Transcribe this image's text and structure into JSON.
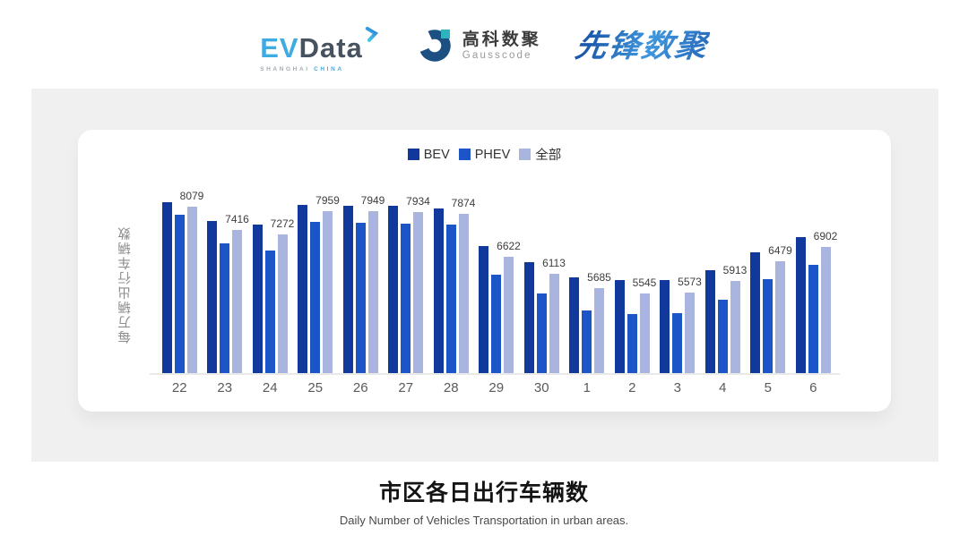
{
  "header": {
    "evdata": {
      "ev": "EV",
      "data": "Data",
      "sub_left": "SHANGHAI",
      "sub_right": "CHINA"
    },
    "gausscode": {
      "cn": "高科数聚",
      "en": "Gausscode"
    },
    "xianfeng": {
      "text": "先锋数聚"
    }
  },
  "chart_data": {
    "type": "bar",
    "title": "市区各日出行车辆数",
    "subtitle": "Daily Number of Vehicles Transportation in urban areas.",
    "ylabel": "每万辆出行车辆数",
    "xlabel": "",
    "categories": [
      "22",
      "23",
      "24",
      "25",
      "26",
      "27",
      "28",
      "29",
      "30",
      "1",
      "2",
      "3",
      "4",
      "5",
      "6"
    ],
    "series": [
      {
        "key": "bev",
        "name": "BEV",
        "color": "#10399b",
        "value_labels_visible": false,
        "values": [
          8220,
          7670,
          7560,
          8140,
          8110,
          8110,
          8030,
          6920,
          6460,
          6000,
          5920,
          5920,
          6230,
          6740,
          7190
        ]
      },
      {
        "key": "phev",
        "name": "PHEV",
        "color": "#1c55c7",
        "value_labels_visible": false,
        "values": [
          7850,
          7010,
          6800,
          7640,
          7610,
          7590,
          7560,
          6100,
          5540,
          5030,
          4940,
          4950,
          5360,
          5960,
          6380
        ]
      },
      {
        "key": "all",
        "name": "全部",
        "color": "#a9b4df",
        "value_labels_visible": true,
        "values": [
          8079,
          7416,
          7272,
          7959,
          7949,
          7934,
          7874,
          6622,
          6113,
          5685,
          5545,
          5573,
          5913,
          6479,
          6902
        ]
      }
    ],
    "ylim": [
      3200,
      8400
    ],
    "grid": false,
    "legend_position": "top",
    "axis_line_color": "#e9e9e9"
  },
  "footer": {
    "title": "市区各日出行车辆数",
    "subtitle": "Daily Number of Vehicles Transportation in urban areas."
  },
  "colors": {
    "panel_bg": "#f0f0f0",
    "card_bg": "#ffffff"
  }
}
